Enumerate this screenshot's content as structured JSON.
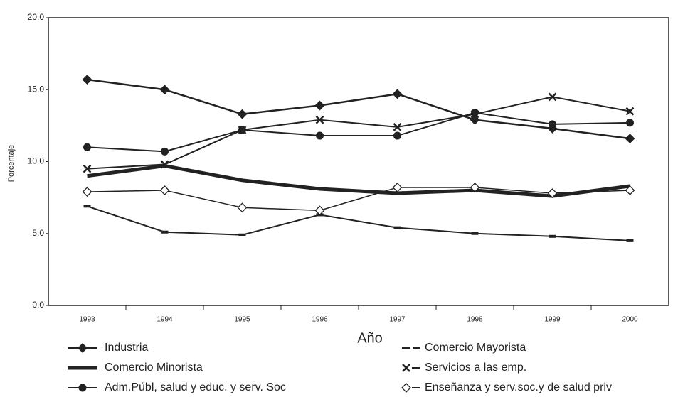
{
  "chart_data": {
    "type": "line",
    "xlabel": "Año",
    "ylabel": "Porcentaje",
    "categories": [
      "1993",
      "1994",
      "1995",
      "1996",
      "1997",
      "1998",
      "1999",
      "2000"
    ],
    "ylim": [
      0,
      20
    ],
    "yticks": [
      {
        "value": 0,
        "label": "0.0"
      },
      {
        "value": 5,
        "label": "5.0"
      },
      {
        "value": 10,
        "label": "10.0"
      },
      {
        "value": 15,
        "label": "15.0"
      },
      {
        "value": 20,
        "label": "20.0"
      }
    ],
    "series": [
      {
        "name": "Industria",
        "color": "#222222",
        "marker": "diamond",
        "width": 2.5,
        "values": [
          15.7,
          15.0,
          13.3,
          13.9,
          14.7,
          12.9,
          12.3,
          11.6
        ]
      },
      {
        "name": "Comercio Mayorista",
        "color": "#222222",
        "marker": "dash",
        "width": 2,
        "values": [
          6.9,
          5.1,
          4.9,
          6.3,
          5.4,
          5.0,
          4.8,
          4.5
        ]
      },
      {
        "name": "Comercio Minorista",
        "color": "#222222",
        "marker": "none",
        "width": 5,
        "values": [
          9.0,
          9.7,
          8.7,
          8.1,
          7.8,
          8.0,
          7.6,
          8.3
        ]
      },
      {
        "name": "Servicios a las emp.",
        "color": "#222222",
        "marker": "x",
        "width": 2,
        "values": [
          9.5,
          9.8,
          12.2,
          12.9,
          12.4,
          13.3,
          14.5,
          13.5
        ]
      },
      {
        "name": "Adm.Públ, salud y educ. y serv. Soc",
        "color": "#222222",
        "marker": "circle",
        "width": 2,
        "values": [
          11.0,
          10.7,
          12.2,
          11.8,
          11.8,
          13.4,
          12.6,
          12.7
        ]
      },
      {
        "name": "Enseñanza y serv.soc.y de salud priv",
        "color": "#222222",
        "marker": "open-diamond",
        "width": 1.5,
        "values": [
          7.9,
          8.0,
          6.8,
          6.6,
          8.2,
          8.2,
          7.8,
          8.0
        ]
      }
    ]
  }
}
